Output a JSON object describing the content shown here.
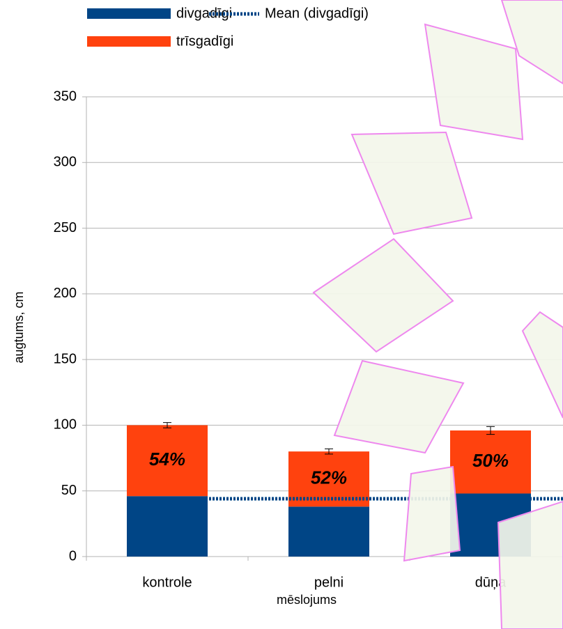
{
  "chart_data": {
    "type": "stacked_bar",
    "y_axis_label": "augtums, cm",
    "x_axis_label": "mēslojums",
    "categories": [
      "kontrole",
      "pelni",
      "dūņa"
    ],
    "series": [
      {
        "name": "divgadīgi",
        "color": "#004586",
        "values": [
          46,
          38,
          48
        ]
      },
      {
        "name": "trīsgadīgi",
        "color": "#ff420e",
        "values": [
          54,
          42,
          48
        ],
        "errors": [
          2,
          2,
          3
        ],
        "share_labels": [
          "54%",
          "52%",
          "50%"
        ]
      }
    ],
    "mean_line": {
      "name": "Mean (divgadīgi)",
      "color": "#004586",
      "value": 44
    },
    "ylim": [
      0,
      350
    ],
    "yticks": [
      0,
      50,
      100,
      150,
      200,
      250,
      300,
      350
    ],
    "grid": true
  }
}
